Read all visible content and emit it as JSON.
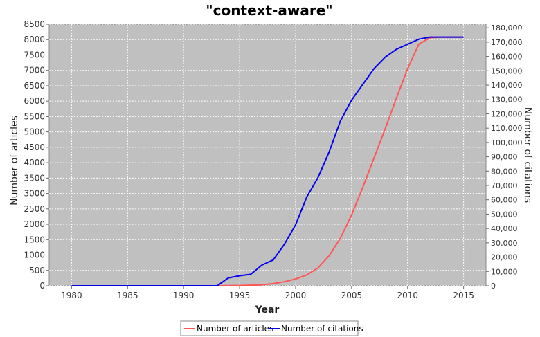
{
  "chart_data": {
    "type": "line",
    "title": "\"context-aware\"",
    "xlabel": "Year",
    "ylabel": "Number of articles",
    "y2label": "Number of citations",
    "xlim": [
      1978,
      2017
    ],
    "ylim": [
      0,
      8500
    ],
    "y2lim": [
      0,
      182500
    ],
    "x_ticks": [
      1980,
      1985,
      1990,
      1995,
      2000,
      2005,
      2010,
      2015
    ],
    "y_ticks": [
      0,
      500,
      1000,
      1500,
      2000,
      2500,
      3000,
      3500,
      4000,
      4500,
      5000,
      5500,
      6000,
      6500,
      7000,
      7500,
      8000,
      8500
    ],
    "y2_ticks": [
      "0",
      "10,000",
      "20,000",
      "30,000",
      "40,000",
      "50,000",
      "60,000",
      "70,000",
      "80,000",
      "90,000",
      "100,000",
      "110,000",
      "120,000",
      "130,000",
      "140,000",
      "150,000",
      "160,000",
      "170,000",
      "180,000"
    ],
    "y2_tick_values": [
      0,
      10000,
      20000,
      30000,
      40000,
      50000,
      60000,
      70000,
      80000,
      90000,
      100000,
      110000,
      120000,
      130000,
      140000,
      150000,
      160000,
      170000,
      180000
    ],
    "grid": true,
    "legend_position": "bottom",
    "background": "#c0c0c0",
    "series": [
      {
        "name": "Number of articles",
        "axis": "left",
        "color": "#ff5555",
        "x": [
          1980,
          1981,
          1982,
          1983,
          1984,
          1985,
          1986,
          1987,
          1988,
          1989,
          1990,
          1991,
          1992,
          1993,
          1994,
          1995,
          1996,
          1997,
          1998,
          1999,
          2000,
          2001,
          2002,
          2003,
          2004,
          2005,
          2006,
          2007,
          2008,
          2009,
          2010,
          2011,
          2012,
          2013,
          2014,
          2015
        ],
        "values": [
          0,
          0,
          0,
          0,
          0,
          0,
          0,
          0,
          0,
          0,
          0,
          0,
          0,
          0,
          5,
          10,
          20,
          30,
          70,
          130,
          220,
          350,
          580,
          980,
          1550,
          2300,
          3200,
          4150,
          5100,
          6100,
          7050,
          7850,
          8060,
          8080,
          8080,
          8080
        ]
      },
      {
        "name": "Number of citations",
        "axis": "right",
        "color": "#0000ee",
        "x": [
          1980,
          1981,
          1982,
          1983,
          1984,
          1985,
          1986,
          1987,
          1988,
          1989,
          1990,
          1991,
          1992,
          1993,
          1994,
          1995,
          1996,
          1997,
          1998,
          1999,
          2000,
          2001,
          2002,
          2003,
          2004,
          2005,
          2006,
          2007,
          2008,
          2009,
          2010,
          2011,
          2012,
          2013,
          2014,
          2015
        ],
        "values": [
          0,
          0,
          0,
          0,
          0,
          0,
          0,
          0,
          0,
          0,
          0,
          0,
          0,
          0,
          5500,
          7000,
          8000,
          14500,
          18000,
          29000,
          42500,
          62000,
          75500,
          93500,
          115000,
          129500,
          140500,
          151500,
          159500,
          165000,
          168500,
          172000,
          173500,
          173500,
          173500,
          173500
        ]
      }
    ]
  }
}
